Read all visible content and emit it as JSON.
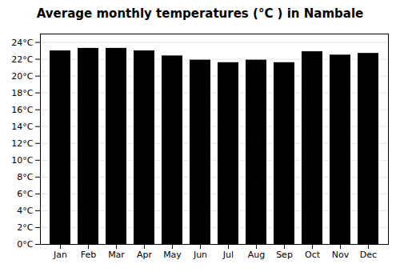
{
  "chart_data": {
    "type": "bar",
    "title": "Average monthly temperatures (°C ) in Nambale",
    "categories": [
      "Jan",
      "Feb",
      "Mar",
      "Apr",
      "May",
      "Jun",
      "Jul",
      "Aug",
      "Sep",
      "Oct",
      "Nov",
      "Dec"
    ],
    "values": [
      23.0,
      23.3,
      23.3,
      23.0,
      22.4,
      21.9,
      21.6,
      21.9,
      21.6,
      22.9,
      22.5,
      22.7
    ],
    "ylim": [
      0,
      25
    ],
    "yticks": [
      {
        "value": 0,
        "label": "0°C"
      },
      {
        "value": 2,
        "label": "2°C"
      },
      {
        "value": 4,
        "label": "4°C"
      },
      {
        "value": 6,
        "label": "6°C"
      },
      {
        "value": 8,
        "label": "8°C"
      },
      {
        "value": 10,
        "label": "10°C"
      },
      {
        "value": 12,
        "label": "12°C"
      },
      {
        "value": 14,
        "label": "14°C"
      },
      {
        "value": 16,
        "label": "16°C"
      },
      {
        "value": 18,
        "label": "18°C"
      },
      {
        "value": 20,
        "label": "20°C"
      },
      {
        "value": 22,
        "label": "22°C"
      },
      {
        "value": 24,
        "label": "24°C"
      }
    ],
    "grid": true
  }
}
